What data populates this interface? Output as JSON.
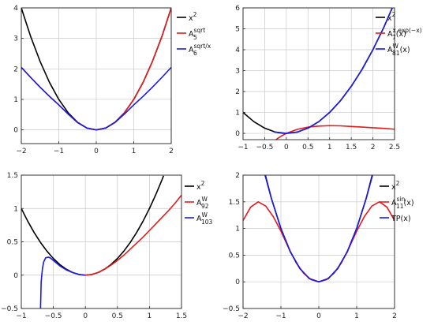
{
  "chart_data": [
    {
      "type": "line",
      "xlim": [
        -2,
        2
      ],
      "ylim": [
        -0.45,
        4
      ],
      "xticks": [
        -2,
        -1,
        0,
        1,
        2
      ],
      "xtick_labels": [
        "−2",
        "−1",
        "0",
        "1",
        "2"
      ],
      "yticks": [
        0,
        1,
        2,
        3,
        4
      ],
      "ytick_labels": [
        "0",
        "1",
        "2",
        "3",
        "4"
      ],
      "grid": true,
      "legend_position": "right-top",
      "series": [
        {
          "name": "x^2",
          "legend": {
            "base": "x",
            "sup": "2",
            "sub": ""
          },
          "color": "#000000",
          "x": [
            -2,
            -1.75,
            -1.5,
            -1.25,
            -1,
            -0.75,
            -0.5,
            -0.25,
            0,
            0.25,
            0.5,
            0.75,
            1,
            1.25,
            1.5,
            1.75,
            2
          ],
          "y": [
            4,
            3.06,
            2.25,
            1.56,
            1,
            0.56,
            0.25,
            0.06,
            0,
            0.06,
            0.25,
            0.56,
            1,
            1.56,
            2.25,
            3.06,
            4
          ]
        },
        {
          "name": "A_5^sqrt",
          "legend": {
            "base": "A",
            "sup": "sqrt",
            "sub": "5"
          },
          "color": "#e41a1c",
          "x": [
            -2,
            -1.75,
            -1.5,
            -1.25,
            -1,
            -0.75,
            -0.5,
            -0.25,
            0,
            0.25,
            0.5,
            0.75,
            1,
            1.25,
            1.5,
            1.75,
            2
          ],
          "y": [
            2.05,
            1.72,
            1.4,
            1.1,
            0.82,
            0.52,
            0.24,
            0.06,
            0,
            0.06,
            0.25,
            0.56,
            1,
            1.56,
            2.25,
            3.06,
            4
          ]
        },
        {
          "name": "A_6^sqrt/x",
          "legend": {
            "base": "A",
            "sup": "sqrt/x",
            "sub": "6"
          },
          "color": "#1a1ae6",
          "x": [
            -2,
            -1.75,
            -1.5,
            -1.25,
            -1,
            -0.75,
            -0.5,
            -0.25,
            0,
            0.25,
            0.5,
            0.75,
            1,
            1.25,
            1.5,
            1.75,
            2
          ],
          "y": [
            2.05,
            1.72,
            1.4,
            1.1,
            0.82,
            0.52,
            0.24,
            0.06,
            0,
            0.06,
            0.24,
            0.52,
            0.82,
            1.1,
            1.4,
            1.72,
            2.05
          ]
        }
      ]
    },
    {
      "type": "line",
      "xlim": [
        -1,
        2.5
      ],
      "ylim": [
        -0.3,
        6
      ],
      "xticks": [
        -1,
        -0.5,
        0,
        0.5,
        1,
        1.5,
        2,
        2.5
      ],
      "xtick_labels": [
        "−1",
        "−0.5",
        "0",
        "0.5",
        "1",
        "1.5",
        "2",
        "2.5"
      ],
      "yticks": [
        0,
        1,
        2,
        3,
        4,
        5,
        6
      ],
      "ytick_labels": [
        "0",
        "1",
        "2",
        "3",
        "4",
        "5",
        "6"
      ],
      "grid": true,
      "legend_position": "right-top",
      "series": [
        {
          "name": "x^2",
          "legend": {
            "base": "x",
            "sup": "2",
            "sub": ""
          },
          "color": "#000000",
          "x": [
            -1,
            -0.75,
            -0.5,
            -0.25,
            0,
            0.25,
            0.5,
            0.75,
            1,
            1.25,
            1.5,
            1.75,
            2,
            2.25,
            2.5
          ],
          "y": [
            1,
            0.56,
            0.25,
            0.06,
            0,
            0.06,
            0.25,
            0.56,
            1,
            1.56,
            2.25,
            3.06,
            4,
            5.06,
            6.25
          ]
        },
        {
          "name": "A_7^x.exp(-x)(x)",
          "legend": {
            "base": "A",
            "sup": "x.exp(−x)",
            "sub": "7",
            "tail": "(x)"
          },
          "color": "#e41a1c",
          "x": [
            -0.5,
            -0.4,
            -0.3,
            -0.2,
            -0.1,
            0,
            0.25,
            0.5,
            0.75,
            1,
            1.25,
            1.5,
            1.75,
            2,
            2.25,
            2.5
          ],
          "y": [
            -0.82,
            -0.6,
            -0.4,
            -0.24,
            -0.11,
            0,
            0.19,
            0.3,
            0.35,
            0.37,
            0.36,
            0.33,
            0.3,
            0.27,
            0.24,
            0.2
          ]
        },
        {
          "name": "A_8^W_1(x)",
          "legend": {
            "base": "A",
            "sup": "W",
            "sub": "8",
            "post": "1",
            "tail": "(x)"
          },
          "color": "#1a1ae6",
          "x": [
            -0.3,
            -0.2,
            -0.1,
            0,
            0.25,
            0.5,
            0.75,
            1,
            1.25,
            1.5,
            1.75,
            2,
            2.25,
            2.5
          ],
          "y": [
            0.08,
            0.04,
            0.01,
            0,
            0.06,
            0.25,
            0.56,
            1,
            1.56,
            2.25,
            3.06,
            4,
            5.06,
            6.25
          ]
        }
      ]
    },
    {
      "type": "line",
      "xlim": [
        -1,
        1.5
      ],
      "ylim": [
        -0.5,
        1.5
      ],
      "xticks": [
        -1,
        -0.5,
        0,
        0.5,
        1,
        1.5
      ],
      "xtick_labels": [
        "−1",
        "−0.5",
        "0",
        "0.5",
        "1",
        "1.5"
      ],
      "yticks": [
        -0.5,
        0,
        0.5,
        1,
        1.5
      ],
      "ytick_labels": [
        "−0.5",
        "0",
        "0.5",
        "1",
        "1.5"
      ],
      "grid": true,
      "legend_position": "right-top",
      "series": [
        {
          "name": "x^2",
          "legend": {
            "base": "x",
            "sup": "2",
            "sub": ""
          },
          "color": "#000000",
          "x": [
            -1,
            -0.9,
            -0.8,
            -0.7,
            -0.6,
            -0.5,
            -0.4,
            -0.3,
            -0.2,
            -0.1,
            0,
            0.1,
            0.2,
            0.3,
            0.4,
            0.5,
            0.6,
            0.7,
            0.8,
            0.9,
            1,
            1.1,
            1.2,
            1.22
          ],
          "y": [
            1,
            0.81,
            0.64,
            0.49,
            0.36,
            0.25,
            0.16,
            0.09,
            0.04,
            0.01,
            0,
            0.01,
            0.04,
            0.09,
            0.16,
            0.25,
            0.36,
            0.49,
            0.64,
            0.81,
            1,
            1.21,
            1.44,
            1.49
          ]
        },
        {
          "name": "A_9^W_2",
          "legend": {
            "base": "A",
            "sup": "W",
            "sub": "9",
            "post": "2"
          },
          "color": "#e41a1c",
          "x": [
            0,
            0.1,
            0.2,
            0.3,
            0.4,
            0.5,
            0.6,
            0.7,
            0.8,
            0.9,
            1,
            1.1,
            1.2,
            1.3,
            1.4,
            1.5
          ],
          "y": [
            0,
            0.01,
            0.04,
            0.09,
            0.15,
            0.22,
            0.3,
            0.39,
            0.48,
            0.57,
            0.67,
            0.77,
            0.87,
            0.97,
            1.08,
            1.2
          ]
        },
        {
          "name": "A_10^W_3",
          "legend": {
            "base": "A",
            "sup": "W",
            "sub": "10",
            "post": "3"
          },
          "color": "#1a1ae6",
          "x": [
            -0.7,
            -0.69,
            -0.67,
            -0.65,
            -0.62,
            -0.58,
            -0.55,
            -0.5,
            -0.45,
            -0.4,
            -0.3,
            -0.2,
            -0.1,
            0
          ],
          "y": [
            -0.5,
            -0.1,
            0.1,
            0.2,
            0.26,
            0.27,
            0.26,
            0.22,
            0.18,
            0.14,
            0.08,
            0.04,
            0.01,
            0
          ]
        }
      ]
    },
    {
      "type": "line",
      "xlim": [
        -2,
        2
      ],
      "ylim": [
        -0.5,
        2
      ],
      "xticks": [
        -2,
        -1,
        0,
        1,
        2
      ],
      "xtick_labels": [
        "−2",
        "−1",
        "0",
        "1",
        "2"
      ],
      "yticks": [
        -0.5,
        0,
        0.5,
        1,
        1.5,
        2
      ],
      "ytick_labels": [
        "−0.5",
        "0",
        "0.5",
        "1",
        "1.5",
        "2"
      ],
      "grid": true,
      "legend_position": "right-top",
      "series": [
        {
          "name": "x^2",
          "legend": {
            "base": "x",
            "sup": "2",
            "sub": ""
          },
          "color": "#000000",
          "x": [
            -1.41,
            -1.25,
            -1,
            -0.75,
            -0.5,
            -0.25,
            0,
            0.25,
            0.5,
            0.75,
            1,
            1.25,
            1.41
          ],
          "y": [
            2,
            1.56,
            1,
            0.56,
            0.25,
            0.06,
            0,
            0.06,
            0.25,
            0.56,
            1,
            1.56,
            2
          ]
        },
        {
          "name": "A_11^sin(x)",
          "legend": {
            "base": "A",
            "sup": "sin",
            "sub": "11",
            "tail": "(x)"
          },
          "color": "#e41a1c",
          "x": [
            -2,
            -1.8,
            -1.6,
            -1.4,
            -1.2,
            -1,
            -0.8,
            -0.6,
            -0.4,
            -0.2,
            0,
            0.2,
            0.4,
            0.6,
            0.8,
            1,
            1.2,
            1.4,
            1.6,
            1.8,
            2
          ],
          "y": [
            1.15,
            1.4,
            1.5,
            1.42,
            1.22,
            0.95,
            0.64,
            0.36,
            0.16,
            0.04,
            0,
            0.04,
            0.16,
            0.36,
            0.64,
            0.95,
            1.22,
            1.42,
            1.5,
            1.4,
            1.15
          ]
        },
        {
          "name": "TP(x)",
          "legend": {
            "base": "TP(x)",
            "sup": "",
            "sub": ""
          },
          "color": "#1a1ae6",
          "x": [
            -1.42,
            -1.25,
            -1,
            -0.75,
            -0.5,
            -0.25,
            0,
            0.25,
            0.5,
            0.75,
            1,
            1.25,
            1.42
          ],
          "y": [
            2,
            1.56,
            1,
            0.56,
            0.25,
            0.06,
            0,
            0.06,
            0.25,
            0.56,
            1,
            1.56,
            2
          ]
        }
      ]
    }
  ]
}
